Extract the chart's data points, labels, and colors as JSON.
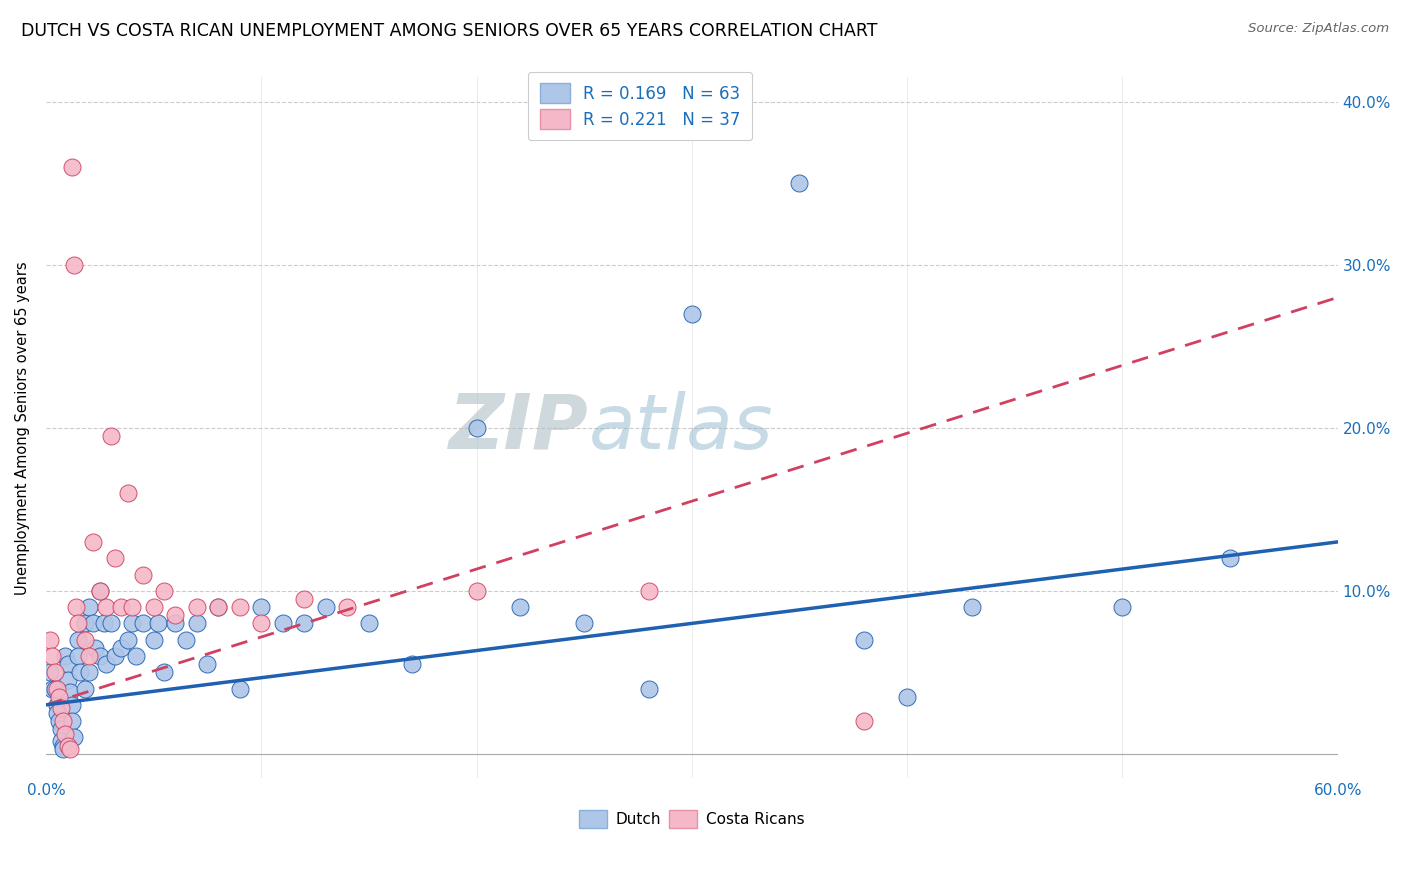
{
  "title": "DUTCH VS COSTA RICAN UNEMPLOYMENT AMONG SENIORS OVER 65 YEARS CORRELATION CHART",
  "source": "Source: ZipAtlas.com",
  "ylabel": "Unemployment Among Seniors over 65 years",
  "xlim": [
    0.0,
    0.6
  ],
  "ylim": [
    -0.015,
    0.415
  ],
  "dutch_R": "0.169",
  "dutch_N": "63",
  "costa_R": "0.221",
  "costa_N": "37",
  "dutch_color": "#aec6e8",
  "costa_color": "#f5b8c8",
  "dutch_line_color": "#2060b0",
  "costa_line_color": "#d04060",
  "watermark_zip": "ZIP",
  "watermark_atlas": "atlas",
  "dutch_x": [
    0.002,
    0.003,
    0.004,
    0.005,
    0.005,
    0.006,
    0.007,
    0.007,
    0.008,
    0.008,
    0.009,
    0.01,
    0.01,
    0.011,
    0.012,
    0.012,
    0.013,
    0.015,
    0.015,
    0.016,
    0.018,
    0.018,
    0.02,
    0.02,
    0.022,
    0.023,
    0.025,
    0.025,
    0.027,
    0.028,
    0.03,
    0.032,
    0.035,
    0.038,
    0.04,
    0.042,
    0.045,
    0.05,
    0.052,
    0.055,
    0.06,
    0.065,
    0.07,
    0.075,
    0.08,
    0.09,
    0.1,
    0.11,
    0.12,
    0.13,
    0.15,
    0.17,
    0.2,
    0.22,
    0.25,
    0.28,
    0.3,
    0.35,
    0.38,
    0.4,
    0.43,
    0.5,
    0.55
  ],
  "dutch_y": [
    0.05,
    0.04,
    0.04,
    0.03,
    0.025,
    0.02,
    0.015,
    0.008,
    0.005,
    0.003,
    0.06,
    0.055,
    0.045,
    0.038,
    0.03,
    0.02,
    0.01,
    0.07,
    0.06,
    0.05,
    0.08,
    0.04,
    0.09,
    0.05,
    0.08,
    0.065,
    0.1,
    0.06,
    0.08,
    0.055,
    0.08,
    0.06,
    0.065,
    0.07,
    0.08,
    0.06,
    0.08,
    0.07,
    0.08,
    0.05,
    0.08,
    0.07,
    0.08,
    0.055,
    0.09,
    0.04,
    0.09,
    0.08,
    0.08,
    0.09,
    0.08,
    0.055,
    0.2,
    0.09,
    0.08,
    0.04,
    0.27,
    0.35,
    0.07,
    0.035,
    0.09,
    0.09,
    0.12
  ],
  "costa_x": [
    0.002,
    0.003,
    0.004,
    0.005,
    0.006,
    0.007,
    0.008,
    0.009,
    0.01,
    0.011,
    0.012,
    0.013,
    0.014,
    0.015,
    0.018,
    0.02,
    0.022,
    0.025,
    0.028,
    0.03,
    0.032,
    0.035,
    0.038,
    0.04,
    0.045,
    0.05,
    0.055,
    0.06,
    0.07,
    0.08,
    0.09,
    0.1,
    0.12,
    0.14,
    0.2,
    0.28,
    0.38
  ],
  "costa_y": [
    0.07,
    0.06,
    0.05,
    0.04,
    0.035,
    0.028,
    0.02,
    0.012,
    0.005,
    0.003,
    0.36,
    0.3,
    0.09,
    0.08,
    0.07,
    0.06,
    0.13,
    0.1,
    0.09,
    0.195,
    0.12,
    0.09,
    0.16,
    0.09,
    0.11,
    0.09,
    0.1,
    0.085,
    0.09,
    0.09,
    0.09,
    0.08,
    0.095,
    0.09,
    0.1,
    0.1,
    0.02
  ]
}
